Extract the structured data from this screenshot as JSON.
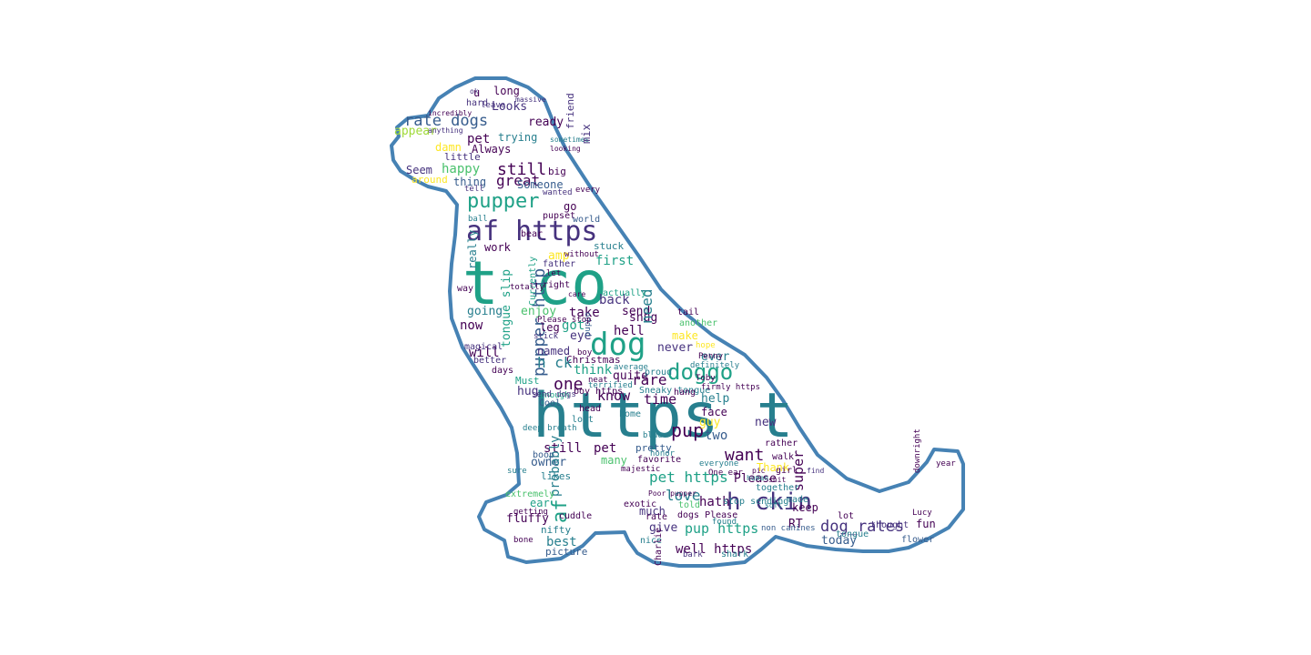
{
  "figure": {
    "kind": "word cloud in dog silhouette",
    "outline_color": "#4682b4",
    "background": "#ffffff"
  },
  "palette": {
    "dark_purple": "#440154",
    "purple": "#46327e",
    "blue": "#365c8d",
    "teal_blue": "#277f8e",
    "teal": "#1fa187",
    "green": "#4ac16d",
    "light_green": "#a0da39",
    "yellow": "#fde725"
  },
  "words": [
    {
      "text": "https t",
      "color": "teal_blue"
    },
    {
      "text": "t co",
      "color": "teal"
    },
    {
      "text": "dog",
      "color": "teal"
    },
    {
      "text": "af https",
      "color": "purple"
    },
    {
      "text": "pupper",
      "color": "teal"
    },
    {
      "text": "h ckin",
      "color": "purple"
    },
    {
      "text": "doggo",
      "color": "teal"
    },
    {
      "text": "rate dogs",
      "color": "blue"
    },
    {
      "text": "one",
      "color": "dark_purple"
    },
    {
      "text": "pupper http",
      "color": "blue"
    },
    {
      "text": "pup",
      "color": "dark_purple"
    },
    {
      "text": "want",
      "color": "dark_purple"
    },
    {
      "text": "rare",
      "color": "dark_purple"
    },
    {
      "text": "know",
      "color": "dark_purple"
    },
    {
      "text": "still",
      "color": "dark_purple"
    },
    {
      "text": "great",
      "color": "dark_purple"
    },
    {
      "text": "dog_rates",
      "color": "purple"
    },
    {
      "text": "pup https",
      "color": "teal"
    },
    {
      "text": "pet https",
      "color": "teal"
    },
    {
      "text": "well https",
      "color": "dark_purple"
    },
    {
      "text": "time",
      "color": "dark_purple"
    },
    {
      "text": "love",
      "color": "teal_blue"
    },
    {
      "text": "af",
      "color": "teal"
    },
    {
      "text": "happy",
      "color": "green"
    },
    {
      "text": "Looks",
      "color": "purple"
    },
    {
      "text": "trying",
      "color": "teal_blue"
    },
    {
      "text": "pet",
      "color": "dark_purple"
    },
    {
      "text": "appear",
      "color": "light_green"
    },
    {
      "text": "Always",
      "color": "dark_purple"
    },
    {
      "text": "ready",
      "color": "dark_purple"
    },
    {
      "text": "damn",
      "color": "yellow"
    },
    {
      "text": "Seem",
      "color": "purple"
    },
    {
      "text": "thing",
      "color": "blue"
    },
    {
      "text": "Someone",
      "color": "blue"
    },
    {
      "text": "go",
      "color": "dark_purple"
    },
    {
      "text": "amp",
      "color": "yellow"
    },
    {
      "text": "work",
      "color": "dark_purple"
    },
    {
      "text": "really",
      "color": "teal_blue"
    },
    {
      "text": "first",
      "color": "teal"
    },
    {
      "text": "stuck",
      "color": "teal_blue"
    },
    {
      "text": "back",
      "color": "purple"
    },
    {
      "text": "send",
      "color": "dark_purple"
    },
    {
      "text": "hell",
      "color": "dark_purple"
    },
    {
      "text": "snug",
      "color": "dark_purple"
    },
    {
      "text": "need",
      "color": "teal_blue"
    },
    {
      "text": "take",
      "color": "dark_purple"
    },
    {
      "text": "enjoy",
      "color": "green"
    },
    {
      "text": "going",
      "color": "teal_blue"
    },
    {
      "text": "tongue slip",
      "color": "teal"
    },
    {
      "text": "now",
      "color": "dark_purple"
    },
    {
      "text": "leg",
      "color": "dark_purple"
    },
    {
      "text": "got",
      "color": "teal"
    },
    {
      "text": "eye",
      "color": "purple"
    },
    {
      "text": "make",
      "color": "yellow"
    },
    {
      "text": "will",
      "color": "dark_purple"
    },
    {
      "text": "named",
      "color": "purple"
    },
    {
      "text": "Christmas",
      "color": "dark_purple"
    },
    {
      "text": "never",
      "color": "purple"
    },
    {
      "text": "ever",
      "color": "teal_blue"
    },
    {
      "text": "h ck",
      "color": "teal_blue"
    },
    {
      "text": "think",
      "color": "teal"
    },
    {
      "text": "quite",
      "color": "dark_purple"
    },
    {
      "text": "hug",
      "color": "purple"
    },
    {
      "text": "help",
      "color": "teal_blue"
    },
    {
      "text": "face",
      "color": "dark_purple"
    },
    {
      "text": "guy",
      "color": "yellow"
    },
    {
      "text": "new",
      "color": "purple"
    },
    {
      "text": "two",
      "color": "blue"
    },
    {
      "text": "still",
      "color": "dark_purple"
    },
    {
      "text": "pet",
      "color": "dark_purple"
    },
    {
      "text": "owner",
      "color": "blue"
    },
    {
      "text": "many",
      "color": "green"
    },
    {
      "text": "probably",
      "color": "teal_blue"
    },
    {
      "text": "Thank",
      "color": "yellow"
    },
    {
      "text": "Please",
      "color": "dark_purple"
    },
    {
      "text": "hath",
      "color": "dark_purple"
    },
    {
      "text": "super",
      "color": "dark_purple"
    },
    {
      "text": "keep",
      "color": "dark_purple"
    },
    {
      "text": "ear",
      "color": "teal"
    },
    {
      "text": "fluffy",
      "color": "dark_purple"
    },
    {
      "text": "much",
      "color": "purple"
    },
    {
      "text": "give",
      "color": "purple"
    },
    {
      "text": "RT",
      "color": "dark_purple"
    },
    {
      "text": "today",
      "color": "blue"
    },
    {
      "text": "fun",
      "color": "dark_purple"
    },
    {
      "text": "nifty",
      "color": "teal_blue"
    },
    {
      "text": "best",
      "color": "teal_blue"
    },
    {
      "text": "picture",
      "color": "blue"
    },
    {
      "text": "tongue",
      "color": "teal_blue"
    },
    {
      "text": "little",
      "color": "purple"
    },
    {
      "text": "around",
      "color": "yellow"
    },
    {
      "text": "hard",
      "color": "purple"
    },
    {
      "text": "long",
      "color": "dark_purple"
    },
    {
      "text": "friend",
      "color": "purple"
    },
    {
      "text": "big",
      "color": "dark_purple"
    },
    {
      "text": "pupset",
      "color": "dark_purple"
    },
    {
      "text": "world",
      "color": "blue"
    },
    {
      "text": "Currently",
      "color": "teal"
    },
    {
      "text": "father",
      "color": "purple"
    },
    {
      "text": "let",
      "color": "dark_purple"
    },
    {
      "text": "right",
      "color": "dark_purple"
    },
    {
      "text": "actually",
      "color": "teal"
    },
    {
      "text": "puppo",
      "color": "blue"
    },
    {
      "text": "tail",
      "color": "dark_purple"
    },
    {
      "text": "another",
      "color": "green"
    },
    {
      "text": "hope",
      "color": "yellow"
    },
    {
      "text": "proud",
      "color": "teal_blue"
    },
    {
      "text": "Cool",
      "color": "blue"
    },
    {
      "text": "Must",
      "color": "teal"
    },
    {
      "text": "days",
      "color": "dark_purple"
    },
    {
      "text": "magical",
      "color": "purple"
    },
    {
      "text": "better",
      "color": "purple"
    },
    {
      "text": "way",
      "color": "dark_purple"
    },
    {
      "text": "boop",
      "color": "blue"
    },
    {
      "text": "likes",
      "color": "teal_blue"
    },
    {
      "text": "cuddle",
      "color": "dark_purple"
    },
    {
      "text": "exotic",
      "color": "dark_purple"
    },
    {
      "text": "nice",
      "color": "teal_blue"
    },
    {
      "text": "Charlie",
      "color": "dark_purple"
    },
    {
      "text": "bark",
      "color": "purple"
    },
    {
      "text": "shark",
      "color": "teal_blue"
    },
    {
      "text": "stop sending",
      "color": "teal_blue"
    },
    {
      "text": "together",
      "color": "teal_blue"
    },
    {
      "text": "made",
      "color": "teal_blue"
    },
    {
      "text": "lot",
      "color": "dark_purple"
    },
    {
      "text": "thought",
      "color": "purple"
    },
    {
      "text": "flower",
      "color": "blue"
    },
    {
      "text": "found",
      "color": "teal_blue"
    },
    {
      "text": "told",
      "color": "green"
    },
    {
      "text": "rate",
      "color": "dark_purple"
    },
    {
      "text": "dogs Please",
      "color": "dark_purple"
    },
    {
      "text": "non canines",
      "color": "blue"
    },
    {
      "text": "favorite",
      "color": "dark_purple"
    },
    {
      "text": "majestic",
      "color": "dark_purple"
    },
    {
      "text": "pretty",
      "color": "blue"
    },
    {
      "text": "rather",
      "color": "dark_purple"
    },
    {
      "text": "walk",
      "color": "dark_purple"
    },
    {
      "text": "girl",
      "color": "dark_purple"
    },
    {
      "text": "home",
      "color": "teal_blue"
    },
    {
      "text": "head",
      "color": "dark_purple"
    },
    {
      "text": "lost",
      "color": "teal_blue"
    },
    {
      "text": "blue",
      "color": "teal_blue"
    },
    {
      "text": "honor",
      "color": "teal_blue"
    },
    {
      "text": "Sneaky tongue",
      "color": "teal_blue"
    },
    {
      "text": "hang",
      "color": "dark_purple"
    },
    {
      "text": "firmly https",
      "color": "dark_purple"
    },
    {
      "text": "neat",
      "color": "dark_purple"
    },
    {
      "text": "terrified",
      "color": "teal_blue"
    },
    {
      "text": "boy https",
      "color": "dark_purple"
    },
    {
      "text": "enough",
      "color": "teal"
    },
    {
      "text": "send dogs",
      "color": "purple"
    },
    {
      "text": "definitely",
      "color": "teal_blue"
    },
    {
      "text": "Toby",
      "color": "dark_purple"
    },
    {
      "text": "Penny",
      "color": "dark_purple"
    },
    {
      "text": "average",
      "color": "teal_blue"
    },
    {
      "text": "stick",
      "color": "purple"
    },
    {
      "text": "Please stop",
      "color": "dark_purple"
    },
    {
      "text": "totally",
      "color": "dark_purple"
    },
    {
      "text": "bear",
      "color": "dark_purple"
    },
    {
      "text": "without",
      "color": "dark_purple"
    },
    {
      "text": "ball",
      "color": "teal_blue"
    },
    {
      "text": "wanted",
      "color": "purple"
    },
    {
      "text": "every",
      "color": "dark_purple"
    },
    {
      "text": "tell",
      "color": "purple"
    },
    {
      "text": "bone",
      "color": "dark_purple"
    },
    {
      "text": "getting",
      "color": "dark_purple"
    },
    {
      "text": "extremely",
      "color": "green"
    },
    {
      "text": "sure",
      "color": "teal_blue"
    },
    {
      "text": "year",
      "color": "dark_purple"
    },
    {
      "text": "downright",
      "color": "dark_purple"
    },
    {
      "text": "Lucy",
      "color": "dark_purple"
    },
    {
      "text": "deep breath",
      "color": "teal_blue"
    },
    {
      "text": "boy",
      "color": "dark_purple"
    },
    {
      "text": "ok",
      "color": "purple"
    },
    {
      "text": "u",
      "color": "dark_purple"
    },
    {
      "text": "leave",
      "color": "purple"
    },
    {
      "text": "massive",
      "color": "purple"
    },
    {
      "text": "incredibly",
      "color": "dark_purple"
    },
    {
      "text": "anything",
      "color": "purple"
    },
    {
      "text": "sometimes",
      "color": "teal_blue"
    },
    {
      "text": "looking",
      "color": "dark_purple"
    },
    {
      "text": "One ear",
      "color": "dark_purple"
    },
    {
      "text": "Poor pupper",
      "color": "dark_purple"
    },
    {
      "text": "soft",
      "color": "teal_blue"
    },
    {
      "text": "care",
      "color": "dark_purple"
    },
    {
      "text": "pic",
      "color": "dark_purple"
    },
    {
      "text": "human",
      "color": "teal_blue"
    },
    {
      "text": "shit",
      "color": "dark_purple"
    },
    {
      "text": "find",
      "color": "purple"
    },
    {
      "text": "everyone",
      "color": "teal_blue"
    },
    {
      "text": "mix",
      "color": "purple"
    },
    {
      "text": "real",
      "color": "yellow"
    }
  ]
}
